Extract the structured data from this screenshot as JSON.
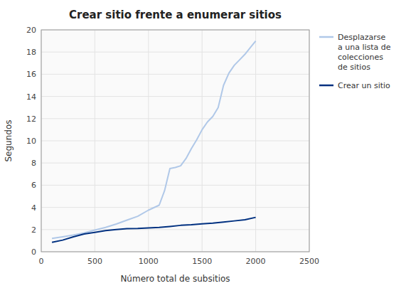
{
  "chart_data": {
    "type": "line",
    "title": "Crear sitio frente a enumerar sitios",
    "xlabel": "Número total de subsitios",
    "ylabel": "Segundos",
    "xlim": [
      0,
      2500
    ],
    "ylim": [
      0,
      20
    ],
    "xticks": [
      0,
      500,
      1000,
      1500,
      2000,
      2500
    ],
    "yticks": [
      0,
      2,
      4,
      6,
      8,
      10,
      12,
      14,
      16,
      18,
      20
    ],
    "grid": true,
    "legend": "right",
    "series": [
      {
        "name": "Desplazarse\na una lista de\ncolecciones\nde sitios",
        "color": "#b0c8e8",
        "x": [
          100,
          200,
          300,
          400,
          500,
          600,
          700,
          800,
          900,
          1000,
          1100,
          1150,
          1200,
          1250,
          1300,
          1350,
          1400,
          1450,
          1500,
          1550,
          1600,
          1650,
          1700,
          1750,
          1800,
          1850,
          1900,
          1950,
          2000
        ],
        "values": [
          1.2,
          1.35,
          1.5,
          1.7,
          1.95,
          2.2,
          2.5,
          2.85,
          3.2,
          3.75,
          4.2,
          5.5,
          7.5,
          7.6,
          7.75,
          8.4,
          9.3,
          10.1,
          11.0,
          11.7,
          12.2,
          13.0,
          15.0,
          16.1,
          16.8,
          17.3,
          17.8,
          18.4,
          19.0
        ]
      },
      {
        "name": "Crear un sitio",
        "color": "#003080",
        "x": [
          100,
          200,
          300,
          400,
          500,
          600,
          700,
          800,
          900,
          1000,
          1100,
          1200,
          1300,
          1400,
          1500,
          1600,
          1700,
          1800,
          1900,
          2000
        ],
        "values": [
          0.85,
          1.05,
          1.35,
          1.6,
          1.75,
          1.9,
          2.0,
          2.08,
          2.1,
          2.15,
          2.2,
          2.28,
          2.38,
          2.43,
          2.52,
          2.58,
          2.68,
          2.78,
          2.88,
          3.1
        ]
      }
    ]
  }
}
